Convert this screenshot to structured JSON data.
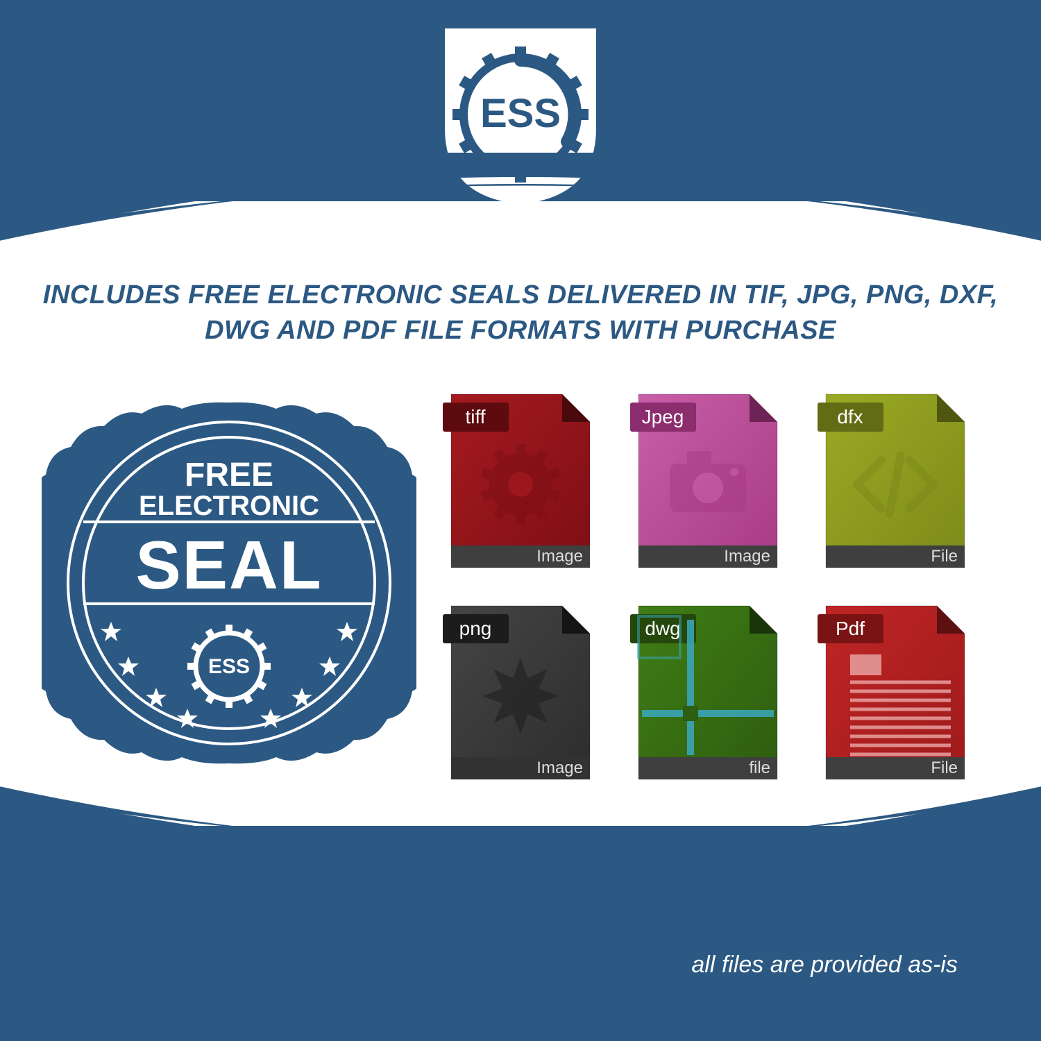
{
  "colors": {
    "background": "#2c5983",
    "white": "#ffffff",
    "seal_fill": "#2c5983",
    "headline_text": "#2c5983"
  },
  "logo": {
    "text": "ESS",
    "text_color": "#2c5983",
    "shield_fill": "#ffffff",
    "shield_border": "#2c5983",
    "gear_color": "#2c5983"
  },
  "headline": "INCLUDES FREE ELECTRONIC SEALS DELIVERED IN TIF, JPG, PNG, DXF, DWG AND PDF FILE FORMATS WITH PURCHASE",
  "headline_fontsize": 38,
  "seal": {
    "line1": "FREE",
    "line2": "ELECTRONIC",
    "line3": "SEAL",
    "gear_text": "ESS",
    "fill": "#2c5983",
    "stroke": "#ffffff",
    "star_count": 8
  },
  "file_icons": [
    {
      "id": "tiff",
      "tab_label": "tiff",
      "footer_label": "Image",
      "body_dark": "#7d0f14",
      "body_light": "#a51a20",
      "tab_dark": "#5e0b0f",
      "fold": "#4a0a0d",
      "footer_bg": "#3f3f3f",
      "motif": "gear"
    },
    {
      "id": "jpeg",
      "tab_label": "Jpeg",
      "footer_label": "Image",
      "body_dark": "#a83a86",
      "body_light": "#c85fa8",
      "tab_dark": "#8c2d6e",
      "fold": "#6e2356",
      "footer_bg": "#3f3f3f",
      "motif": "camera"
    },
    {
      "id": "dfx",
      "tab_label": "dfx",
      "footer_label": "File",
      "body_dark": "#7d8a1a",
      "body_light": "#9aaa24",
      "tab_dark": "#626c14",
      "fold": "#4e560f",
      "footer_bg": "#3f3f3f",
      "motif": "code"
    },
    {
      "id": "png",
      "tab_label": "png",
      "footer_label": "Image",
      "body_dark": "#2d2d2d",
      "body_light": "#454545",
      "tab_dark": "#1c1c1c",
      "fold": "#141414",
      "footer_bg": "#323232",
      "motif": "starburst"
    },
    {
      "id": "dwg",
      "tab_label": "dwg",
      "footer_label": "file",
      "body_dark": "#2e5d0f",
      "body_light": "#3f7d15",
      "tab_dark": "#24470c",
      "fold": "#1a3509",
      "footer_bg": "#3f3f3f",
      "motif": "crosshair",
      "accent": "#3aa5b5"
    },
    {
      "id": "pdf",
      "tab_label": "Pdf",
      "footer_label": "File",
      "body_dark": "#9e1b1b",
      "body_light": "#c02525",
      "tab_dark": "#7a1414",
      "fold": "#5e0f0f",
      "footer_bg": "#3f3f3f",
      "motif": "lines",
      "accent": "#e8a0a0"
    }
  ],
  "footer_note": "all files are provided as-is",
  "footer_note_fontsize": 34
}
